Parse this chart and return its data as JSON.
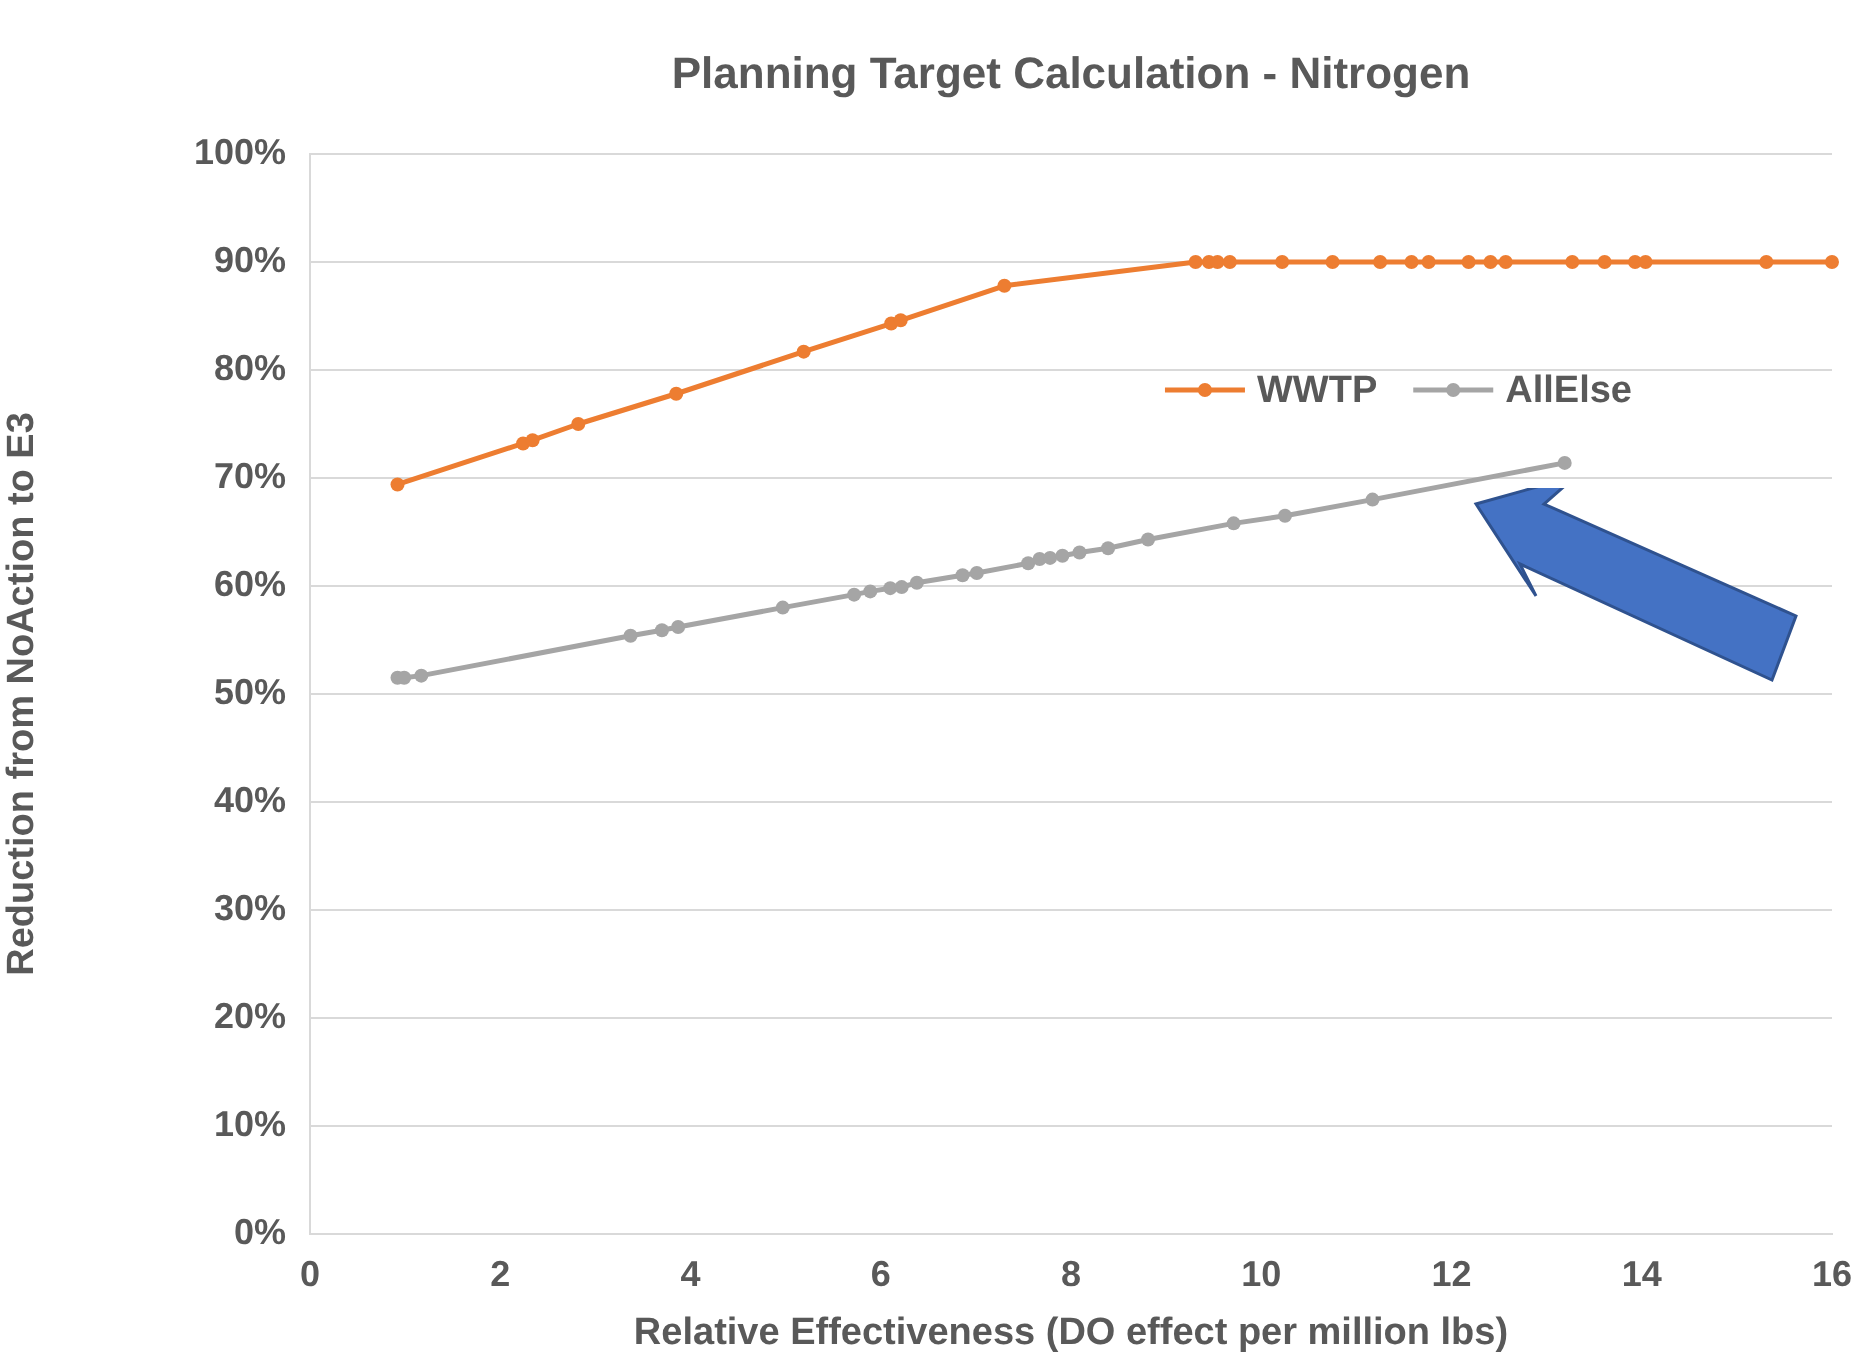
{
  "chart_data": {
    "type": "line",
    "title": "Planning Target Calculation - Nitrogen",
    "xlabel": "Relative Effectiveness (DO effect per million lbs)",
    "ylabel": "Reduction from NoAction to E3",
    "xlim": [
      0,
      16
    ],
    "xticks": [
      0,
      2,
      4,
      6,
      8,
      10,
      12,
      14,
      16
    ],
    "ylim": [
      0,
      100
    ],
    "yticks": [
      {
        "value": 0,
        "label": "0%"
      },
      {
        "value": 10,
        "label": "10%"
      },
      {
        "value": 20,
        "label": "20%"
      },
      {
        "value": 30,
        "label": "30%"
      },
      {
        "value": 40,
        "label": "40%"
      },
      {
        "value": 50,
        "label": "50%"
      },
      {
        "value": 60,
        "label": "60%"
      },
      {
        "value": 70,
        "label": "70%"
      },
      {
        "value": 80,
        "label": "80%"
      },
      {
        "value": 90,
        "label": "90%"
      },
      {
        "value": 100,
        "label": "100%"
      }
    ],
    "grid": "y",
    "legend": "top right",
    "marker": "circle",
    "line_style": "solid",
    "series": [
      {
        "name": "WWTP",
        "color": "#ed7d31",
        "x": [
          0.92,
          2.24,
          2.34,
          2.82,
          3.85,
          5.19,
          6.11,
          6.21,
          7.3,
          9.31,
          9.45,
          9.54,
          9.67,
          10.22,
          10.75,
          11.25,
          11.58,
          11.76,
          12.18,
          12.41,
          12.57,
          13.27,
          13.61,
          13.93,
          14.04,
          15.31,
          16
        ],
        "values": [
          69.4,
          73.2,
          73.5,
          75.0,
          77.8,
          81.7,
          84.3,
          84.6,
          87.8,
          90,
          90,
          90,
          90,
          90,
          90,
          90,
          90,
          90,
          90,
          90,
          90,
          90,
          90,
          90,
          90,
          90,
          90
        ]
      },
      {
        "name": "AllElse",
        "color": "#a5a5a5",
        "x": [
          0.92,
          0.99,
          1.17,
          3.37,
          3.7,
          3.87,
          4.97,
          5.72,
          5.89,
          6.1,
          6.22,
          6.38,
          6.86,
          7.01,
          7.55,
          7.67,
          7.78,
          7.91,
          8.09,
          8.39,
          8.81,
          9.71,
          10.25,
          11.17,
          13.19
        ],
        "values": [
          51.5,
          51.5,
          51.7,
          55.4,
          55.9,
          56.2,
          58.0,
          59.2,
          59.5,
          59.8,
          59.9,
          60.3,
          61.0,
          61.2,
          62.1,
          62.5,
          62.6,
          62.8,
          63.1,
          63.5,
          64.3,
          65.8,
          66.5,
          68.0,
          71.4
        ]
      }
    ]
  }
}
